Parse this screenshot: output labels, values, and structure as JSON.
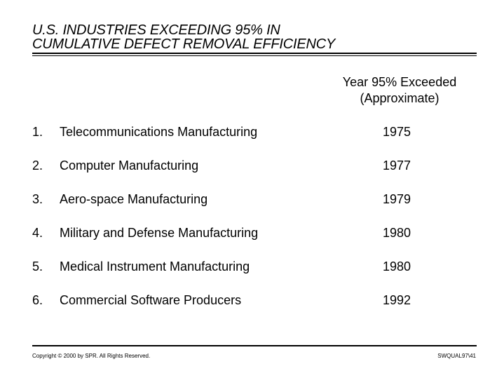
{
  "title": {
    "line1": "U.S. INDUSTRIES EXCEEDING 95% IN",
    "line2": "CUMULATIVE DEFECT REMOVAL EFFICIENCY"
  },
  "column_header": {
    "line1": "Year 95% Exceeded",
    "line2": "(Approximate)"
  },
  "rows": [
    {
      "num": "1.",
      "industry": "Telecommunications Manufacturing",
      "year": "1975"
    },
    {
      "num": "2.",
      "industry": "Computer Manufacturing",
      "year": "1977"
    },
    {
      "num": "3.",
      "industry": "Aero-space Manufacturing",
      "year": "1979"
    },
    {
      "num": "4.",
      "industry": "Military and Defense Manufacturing",
      "year": "1980"
    },
    {
      "num": "5.",
      "industry": "Medical Instrument Manufacturing",
      "year": "1980"
    },
    {
      "num": "6.",
      "industry": "Commercial Software Producers",
      "year": "1992"
    }
  ],
  "footer": {
    "copyright": "Copyright © 2000 by SPR. All Rights Reserved.",
    "slide_id": "SWQUAL97\\41"
  }
}
